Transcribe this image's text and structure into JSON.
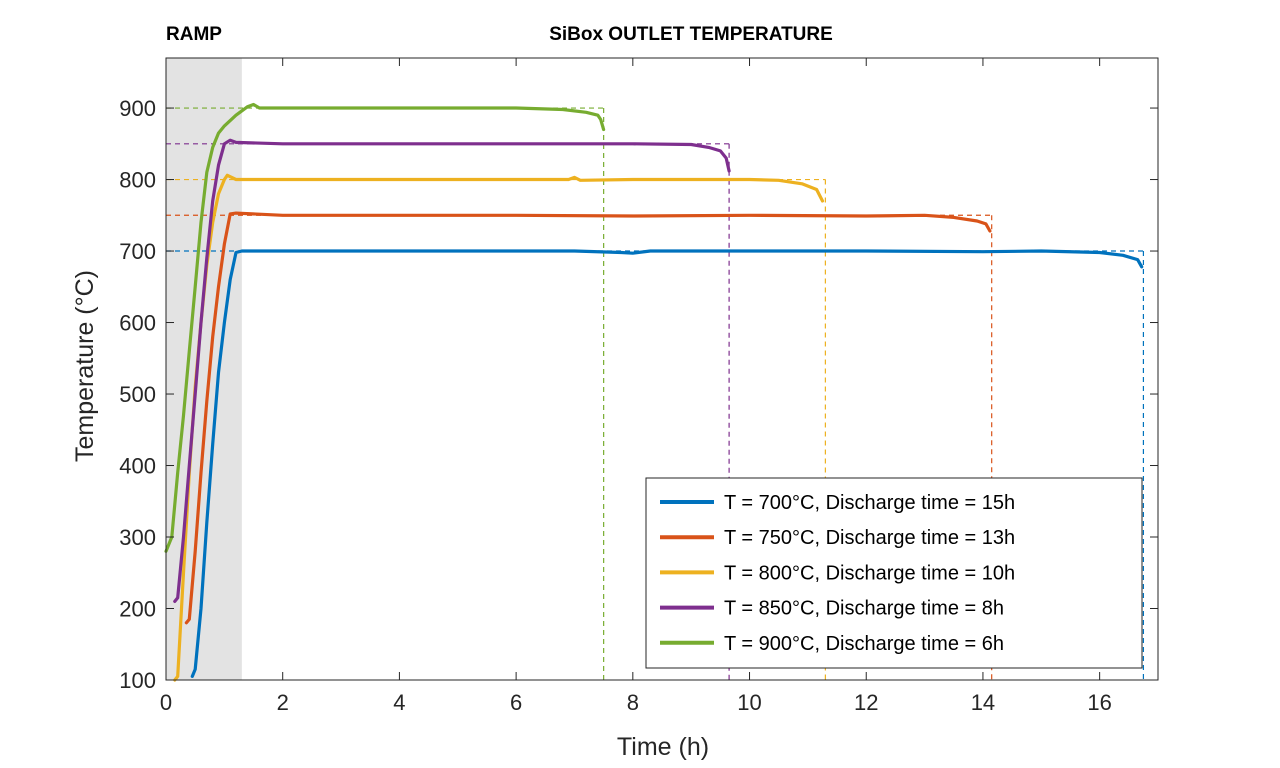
{
  "chart_data": {
    "type": "line",
    "title": "SiBox OUTLET TEMPERATURE",
    "ramp_label": "RAMP",
    "xlabel": "Time (h)",
    "ylabel": "Temperature (°C)",
    "xlim": [
      0,
      17
    ],
    "ylim": [
      100,
      970
    ],
    "xticks": [
      "0",
      "2",
      "4",
      "6",
      "8",
      "10",
      "12",
      "14",
      "16"
    ],
    "yticks": [
      "100",
      "200",
      "300",
      "400",
      "500",
      "600",
      "700",
      "800",
      "900"
    ],
    "ramp_region": [
      0,
      1.3
    ],
    "ramp_color": "#e3e3e3",
    "grid": false,
    "legend_position": "bottom-right",
    "series": [
      {
        "name": "T = 700°C, Discharge time = 15h",
        "color": "#0072bd",
        "setpoint": 700,
        "end_time": 16.75,
        "points": [
          [
            0.45,
            105
          ],
          [
            0.5,
            115
          ],
          [
            0.6,
            200
          ],
          [
            0.7,
            320
          ],
          [
            0.8,
            430
          ],
          [
            0.9,
            530
          ],
          [
            1.0,
            600
          ],
          [
            1.1,
            660
          ],
          [
            1.2,
            698
          ],
          [
            1.3,
            700
          ],
          [
            2.0,
            700
          ],
          [
            4.0,
            700
          ],
          [
            6.0,
            700
          ],
          [
            7.0,
            700
          ],
          [
            7.8,
            698
          ],
          [
            8.0,
            697
          ],
          [
            8.3,
            700
          ],
          [
            10.0,
            700
          ],
          [
            12.0,
            700
          ],
          [
            14.0,
            699
          ],
          [
            15.0,
            700
          ],
          [
            16.0,
            698
          ],
          [
            16.4,
            694
          ],
          [
            16.65,
            688
          ],
          [
            16.72,
            678
          ]
        ]
      },
      {
        "name": "T = 750°C, Discharge time = 13h",
        "color": "#d95319",
        "setpoint": 750,
        "end_time": 14.15,
        "points": [
          [
            0.35,
            180
          ],
          [
            0.4,
            185
          ],
          [
            0.5,
            280
          ],
          [
            0.6,
            390
          ],
          [
            0.7,
            490
          ],
          [
            0.8,
            580
          ],
          [
            0.9,
            650
          ],
          [
            1.0,
            710
          ],
          [
            1.1,
            752
          ],
          [
            1.2,
            753
          ],
          [
            2.0,
            750
          ],
          [
            4.0,
            750
          ],
          [
            6.0,
            750
          ],
          [
            8.0,
            749
          ],
          [
            10.0,
            750
          ],
          [
            12.0,
            749
          ],
          [
            13.0,
            750
          ],
          [
            13.5,
            747
          ],
          [
            13.9,
            742
          ],
          [
            14.05,
            738
          ],
          [
            14.12,
            728
          ]
        ]
      },
      {
        "name": "T = 800°C, Discharge time = 10h",
        "color": "#edb120",
        "setpoint": 800,
        "end_time": 11.3,
        "points": [
          [
            0.15,
            100
          ],
          [
            0.2,
            105
          ],
          [
            0.3,
            250
          ],
          [
            0.4,
            390
          ],
          [
            0.5,
            510
          ],
          [
            0.6,
            600
          ],
          [
            0.7,
            680
          ],
          [
            0.8,
            740
          ],
          [
            0.9,
            780
          ],
          [
            1.0,
            800
          ],
          [
            1.05,
            806
          ],
          [
            1.2,
            800
          ],
          [
            2.0,
            800
          ],
          [
            4.0,
            800
          ],
          [
            6.0,
            800
          ],
          [
            6.9,
            800
          ],
          [
            7.0,
            803
          ],
          [
            7.1,
            799
          ],
          [
            8.0,
            800
          ],
          [
            10.0,
            800
          ],
          [
            10.5,
            799
          ],
          [
            10.9,
            794
          ],
          [
            11.15,
            786
          ],
          [
            11.25,
            770
          ]
        ]
      },
      {
        "name": "T = 850°C, Discharge time = 8h",
        "color": "#7e2f8e",
        "setpoint": 850,
        "end_time": 9.65,
        "points": [
          [
            0.15,
            210
          ],
          [
            0.2,
            215
          ],
          [
            0.3,
            300
          ],
          [
            0.4,
            400
          ],
          [
            0.5,
            500
          ],
          [
            0.6,
            600
          ],
          [
            0.7,
            690
          ],
          [
            0.8,
            770
          ],
          [
            0.9,
            820
          ],
          [
            1.0,
            850
          ],
          [
            1.1,
            855
          ],
          [
            1.2,
            852
          ],
          [
            2.0,
            850
          ],
          [
            4.0,
            850
          ],
          [
            6.0,
            850
          ],
          [
            8.0,
            850
          ],
          [
            9.0,
            849
          ],
          [
            9.3,
            845
          ],
          [
            9.5,
            840
          ],
          [
            9.6,
            830
          ],
          [
            9.65,
            812
          ]
        ]
      },
      {
        "name": "T = 900°C, Discharge time = 6h",
        "color": "#77ac30",
        "setpoint": 900,
        "end_time": 7.5,
        "points": [
          [
            0.0,
            280
          ],
          [
            0.1,
            300
          ],
          [
            0.2,
            390
          ],
          [
            0.3,
            470
          ],
          [
            0.4,
            560
          ],
          [
            0.5,
            650
          ],
          [
            0.6,
            740
          ],
          [
            0.7,
            810
          ],
          [
            0.8,
            845
          ],
          [
            0.9,
            865
          ],
          [
            1.0,
            875
          ],
          [
            1.2,
            890
          ],
          [
            1.4,
            902
          ],
          [
            1.5,
            905
          ],
          [
            1.6,
            900
          ],
          [
            2.0,
            900
          ],
          [
            4.0,
            900
          ],
          [
            6.0,
            900
          ],
          [
            6.8,
            898
          ],
          [
            7.2,
            894
          ],
          [
            7.4,
            890
          ],
          [
            7.45,
            884
          ],
          [
            7.5,
            870
          ]
        ]
      }
    ]
  }
}
